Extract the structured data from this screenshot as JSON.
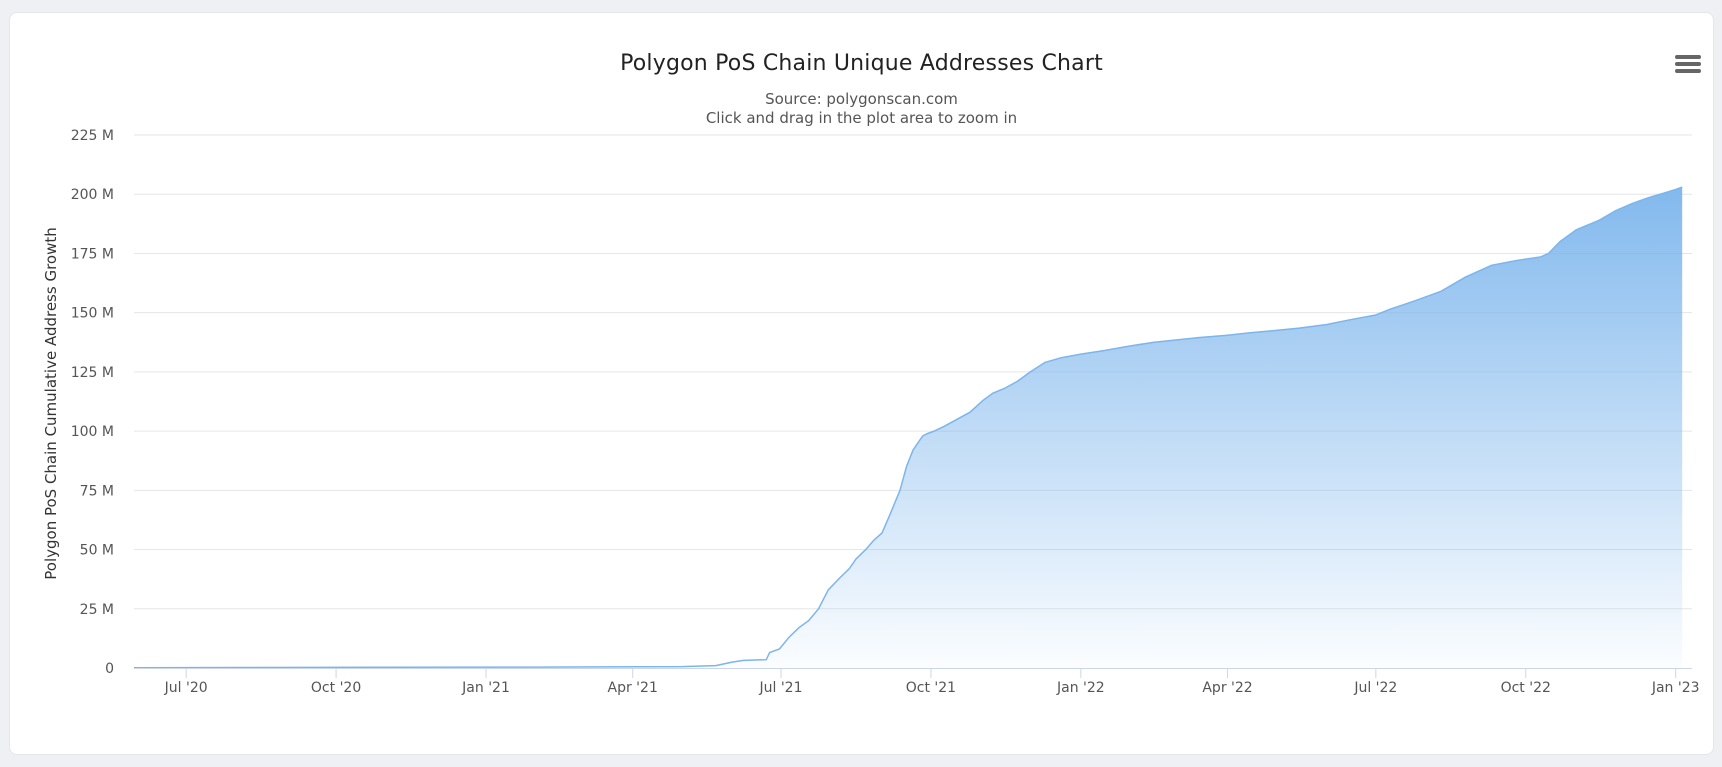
{
  "header": {
    "title": "Polygon PoS Chain Unique Addresses Chart",
    "subtitle_line1": "Source: polygonscan.com",
    "subtitle_line2": "Click and drag in the plot area to zoom in"
  },
  "menu": {
    "icon": "hamburger-menu-icon"
  },
  "colors": {
    "series": "#7cb5ec",
    "area_top": "#7cb5ec",
    "grid": "#e6e6e6",
    "axis": "#ccd6eb"
  },
  "chart_data": {
    "type": "area",
    "title": "Polygon PoS Chain Unique Addresses Chart",
    "subtitle": "Source: polygonscan.com",
    "xlabel": "",
    "ylabel": "Polygon PoS Chain Cumulative Address Growth",
    "x_type": "datetime",
    "xlim": [
      "2020-05-30",
      "2023-01-11"
    ],
    "ylim": [
      0,
      225000000
    ],
    "y_ticks": [
      0,
      25000000,
      50000000,
      75000000,
      100000000,
      125000000,
      150000000,
      175000000,
      200000000,
      225000000
    ],
    "y_tick_labels": [
      "0",
      "25 M",
      "50 M",
      "75 M",
      "100 M",
      "125 M",
      "150 M",
      "175 M",
      "200 M",
      "225 M"
    ],
    "x_ticks": [
      "2020-07-01",
      "2020-10-01",
      "2021-01-01",
      "2021-04-01",
      "2021-07-01",
      "2021-10-01",
      "2022-01-01",
      "2022-04-01",
      "2022-07-01",
      "2022-10-01",
      "2023-01-01"
    ],
    "x_tick_labels": [
      "Jul '20",
      "Oct '20",
      "Jan '21",
      "Apr '21",
      "Jul '21",
      "Oct '21",
      "Jan '22",
      "Apr '22",
      "Jul '22",
      "Oct '22",
      "Jan '23"
    ],
    "grid": true,
    "legend": "none",
    "series": [
      {
        "x": [
          "2020-05-30",
          "2020-08-01",
          "2020-11-01",
          "2021-02-01",
          "2021-05-01",
          "2021-05-22",
          "2021-06-01",
          "2021-06-06",
          "2021-06-08",
          "2021-06-22",
          "2021-06-24",
          "2021-06-30",
          "2021-07-06",
          "2021-07-12",
          "2021-07-18",
          "2021-07-24",
          "2021-07-30",
          "2021-08-06",
          "2021-08-12",
          "2021-08-16",
          "2021-08-22",
          "2021-08-27",
          "2021-09-01",
          "2021-09-06",
          "2021-09-12",
          "2021-09-16",
          "2021-09-20",
          "2021-09-24",
          "2021-09-26",
          "2021-09-29",
          "2021-10-03",
          "2021-10-09",
          "2021-10-17",
          "2021-10-25",
          "2021-11-02",
          "2021-11-08",
          "2021-11-15",
          "2021-11-23",
          "2021-12-01",
          "2021-12-10",
          "2021-12-20",
          "2022-01-01",
          "2022-01-15",
          "2022-02-01",
          "2022-02-10",
          "2022-02-15",
          "2022-03-01",
          "2022-03-15",
          "2022-04-01",
          "2022-04-15",
          "2022-05-01",
          "2022-05-15",
          "2022-06-01",
          "2022-06-15",
          "2022-07-01",
          "2022-07-10",
          "2022-07-25",
          "2022-08-10",
          "2022-08-25",
          "2022-09-10",
          "2022-09-25",
          "2022-10-10",
          "2022-10-15",
          "2022-10-22",
          "2022-11-01",
          "2022-11-15",
          "2022-11-25",
          "2022-12-05",
          "2022-12-15",
          "2022-12-25",
          "2023-01-01",
          "2023-01-05"
        ],
        "values": [
          100000,
          200000,
          300000,
          400000,
          600000,
          1000000,
          2500000,
          3000000,
          3200000,
          3500000,
          6500000,
          8000000,
          13000000,
          17000000,
          20000000,
          25000000,
          33000000,
          38000000,
          42000000,
          46000000,
          50000000,
          54000000,
          57000000,
          65000000,
          75000000,
          85000000,
          92000000,
          96000000,
          98000000,
          99000000,
          100000000,
          102000000,
          105000000,
          108000000,
          113000000,
          116000000,
          118000000,
          121000000,
          125000000,
          129000000,
          131000000,
          132500000,
          134000000,
          136000000,
          137000000,
          137500000,
          138500000,
          139500000,
          140500000,
          141500000,
          142500000,
          143500000,
          145000000,
          147000000,
          149000000,
          151500000,
          155000000,
          159000000,
          165000000,
          170000000,
          172000000,
          173500000,
          175000000,
          180000000,
          185000000,
          189000000,
          193000000,
          196000000,
          198500000,
          200500000,
          202000000,
          203000000
        ]
      }
    ]
  }
}
